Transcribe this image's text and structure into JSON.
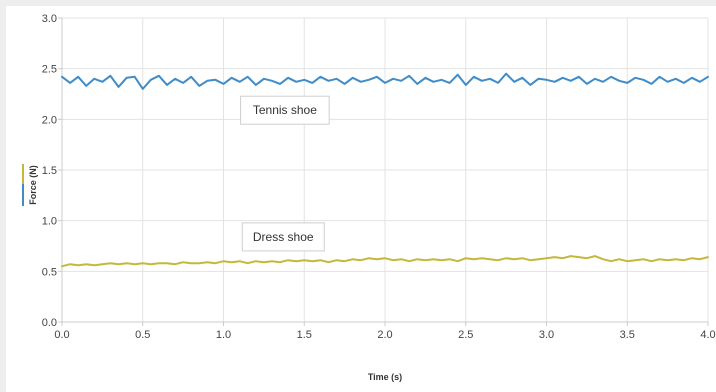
{
  "chart_data": {
    "type": "line",
    "title": "",
    "xlabel": "Time (s)",
    "ylabel": "Force (N)",
    "xlim": [
      0,
      4.0
    ],
    "ylim": [
      0,
      3.0
    ],
    "x_ticks": [
      "0.0",
      "0.5",
      "1.0",
      "1.5",
      "2.0",
      "2.5",
      "3.0",
      "3.5",
      "4.0"
    ],
    "y_ticks": [
      "0.0",
      "0.5",
      "1.0",
      "1.5",
      "2.0",
      "2.5",
      "3.0"
    ],
    "grid": true,
    "ylabel_swatch_colors": [
      "#c4b83a",
      "#3f8cc9"
    ],
    "x": [
      0,
      0.05,
      0.1,
      0.15,
      0.2,
      0.25,
      0.3,
      0.35,
      0.4,
      0.45,
      0.5,
      0.55,
      0.6,
      0.65,
      0.7,
      0.75,
      0.8,
      0.85,
      0.9,
      0.95,
      1.0,
      1.05,
      1.1,
      1.15,
      1.2,
      1.25,
      1.3,
      1.35,
      1.4,
      1.45,
      1.5,
      1.55,
      1.6,
      1.65,
      1.7,
      1.75,
      1.8,
      1.85,
      1.9,
      1.95,
      2.0,
      2.05,
      2.1,
      2.15,
      2.2,
      2.25,
      2.3,
      2.35,
      2.4,
      2.45,
      2.5,
      2.55,
      2.6,
      2.65,
      2.7,
      2.75,
      2.8,
      2.85,
      2.9,
      2.95,
      3.0,
      3.05,
      3.1,
      3.15,
      3.2,
      3.25,
      3.3,
      3.35,
      3.4,
      3.45,
      3.5,
      3.55,
      3.6,
      3.65,
      3.7,
      3.75,
      3.8,
      3.85,
      3.9,
      3.95,
      4.0
    ],
    "series": [
      {
        "color": "#3f8cc9",
        "values": [
          2.42,
          2.36,
          2.42,
          2.33,
          2.4,
          2.37,
          2.43,
          2.32,
          2.41,
          2.42,
          2.3,
          2.39,
          2.43,
          2.34,
          2.4,
          2.36,
          2.42,
          2.33,
          2.38,
          2.39,
          2.35,
          2.41,
          2.37,
          2.42,
          2.34,
          2.4,
          2.38,
          2.35,
          2.41,
          2.37,
          2.39,
          2.36,
          2.42,
          2.38,
          2.4,
          2.35,
          2.41,
          2.37,
          2.39,
          2.42,
          2.36,
          2.4,
          2.38,
          2.43,
          2.35,
          2.41,
          2.37,
          2.39,
          2.36,
          2.44,
          2.34,
          2.42,
          2.38,
          2.4,
          2.36,
          2.45,
          2.37,
          2.41,
          2.34,
          2.4,
          2.39,
          2.37,
          2.41,
          2.38,
          2.42,
          2.35,
          2.4,
          2.37,
          2.42,
          2.38,
          2.36,
          2.41,
          2.39,
          2.35,
          2.42,
          2.37,
          2.4,
          2.36,
          2.41,
          2.37,
          2.42
        ]
      },
      {
        "color": "#c4b83a",
        "values": [
          0.55,
          0.57,
          0.56,
          0.57,
          0.56,
          0.57,
          0.58,
          0.57,
          0.58,
          0.57,
          0.58,
          0.57,
          0.58,
          0.58,
          0.57,
          0.59,
          0.58,
          0.58,
          0.59,
          0.58,
          0.6,
          0.59,
          0.6,
          0.58,
          0.6,
          0.59,
          0.6,
          0.59,
          0.61,
          0.6,
          0.61,
          0.6,
          0.61,
          0.59,
          0.61,
          0.6,
          0.62,
          0.61,
          0.63,
          0.62,
          0.63,
          0.61,
          0.62,
          0.6,
          0.62,
          0.61,
          0.62,
          0.61,
          0.62,
          0.6,
          0.63,
          0.62,
          0.63,
          0.62,
          0.61,
          0.63,
          0.62,
          0.63,
          0.61,
          0.62,
          0.63,
          0.64,
          0.63,
          0.65,
          0.64,
          0.63,
          0.65,
          0.62,
          0.6,
          0.62,
          0.6,
          0.61,
          0.62,
          0.6,
          0.62,
          0.61,
          0.62,
          0.61,
          0.63,
          0.62,
          0.64
        ]
      }
    ],
    "annotations": [
      {
        "text": "Tennis shoe",
        "x": 1.38,
        "y": 2.09
      },
      {
        "text": "Dress shoe",
        "x": 1.37,
        "y": 0.84
      }
    ]
  }
}
